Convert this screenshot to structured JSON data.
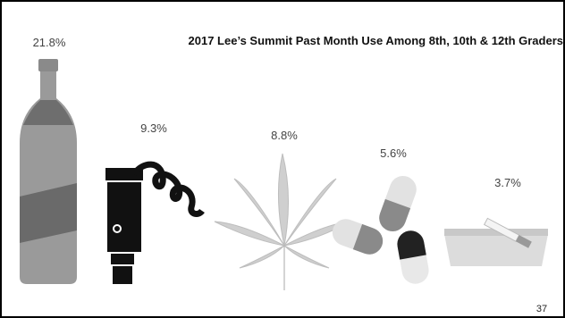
{
  "chart_data": {
    "type": "pictograph",
    "title": "2017 Lee’s Summit Past Month Use Among 8th, 10th & 12th Graders",
    "values": [
      21.8,
      9.3,
      8.8,
      5.6,
      3.7
    ],
    "value_labels": [
      "21.8%",
      "9.3%",
      "8.8%",
      "5.6%",
      "3.7%"
    ]
  },
  "page_number": "37"
}
